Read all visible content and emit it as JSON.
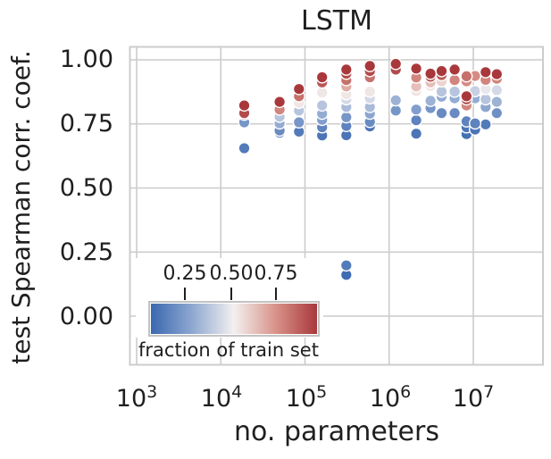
{
  "chart_data": {
    "type": "scatter",
    "title": "LSTM",
    "xlabel": "no. parameters",
    "ylabel": "test Spearman corr. coef.",
    "xscale": "log",
    "xlim": [
      820,
      67000000
    ],
    "ylim": [
      -0.19,
      1.05
    ],
    "grid": true,
    "grid_color": "#cccccc",
    "text_color": "#1f1f1f",
    "marker_edge_color": "#ffffff",
    "xticks": [
      {
        "value": 1000,
        "base": "10",
        "exp": "3"
      },
      {
        "value": 10000,
        "base": "10",
        "exp": "4"
      },
      {
        "value": 100000,
        "base": "10",
        "exp": "5"
      },
      {
        "value": 1000000,
        "base": "10",
        "exp": "6"
      },
      {
        "value": 10000000,
        "base": "10",
        "exp": "7"
      }
    ],
    "yticks": [
      {
        "value": 0.0,
        "label": "0.00"
      },
      {
        "value": 0.25,
        "label": "0.25"
      },
      {
        "value": 0.5,
        "label": "0.50"
      },
      {
        "value": 0.75,
        "label": "0.75"
      },
      {
        "value": 1.0,
        "label": "1.00"
      }
    ],
    "colorbar": {
      "label": "fraction of train set",
      "vmin": 0.05,
      "vmax": 1.0,
      "ticks": [
        {
          "value": 0.25,
          "label": "0.25"
        },
        {
          "value": 0.5,
          "label": "0.50"
        },
        {
          "value": 0.75,
          "label": "0.75"
        }
      ],
      "gradient": [
        {
          "pos": 0.0,
          "color": "#3a68b0"
        },
        {
          "pos": 0.25,
          "color": "#8fa8d1"
        },
        {
          "pos": 0.5,
          "color": "#f3f0ef"
        },
        {
          "pos": 0.75,
          "color": "#d8938a"
        },
        {
          "pos": 1.0,
          "color": "#a9383c"
        }
      ]
    },
    "series": [
      {
        "name": "models",
        "point_format": [
          "no_parameters",
          "test_spearman_corr",
          "fraction_of_train_set"
        ],
        "points": [
          [
            19000,
            0.822,
            1.0
          ],
          [
            19000,
            0.792,
            0.95
          ],
          [
            19000,
            0.786,
            0.9
          ],
          [
            19000,
            0.756,
            0.22
          ],
          [
            19000,
            0.655,
            0.12
          ],
          [
            50000,
            0.836,
            1.0
          ],
          [
            50000,
            0.806,
            0.8
          ],
          [
            50000,
            0.778,
            0.38
          ],
          [
            50000,
            0.752,
            0.3
          ],
          [
            50000,
            0.724,
            0.18
          ],
          [
            50000,
            0.716,
            0.12
          ],
          [
            85000,
            0.886,
            1.0
          ],
          [
            85000,
            0.858,
            0.85
          ],
          [
            85000,
            0.832,
            0.55
          ],
          [
            85000,
            0.802,
            0.38
          ],
          [
            85000,
            0.756,
            0.22
          ],
          [
            85000,
            0.72,
            0.12
          ],
          [
            160000,
            0.932,
            1.0
          ],
          [
            160000,
            0.912,
            0.92
          ],
          [
            160000,
            0.872,
            0.55
          ],
          [
            160000,
            0.822,
            0.38
          ],
          [
            160000,
            0.79,
            0.3
          ],
          [
            160000,
            0.766,
            0.25
          ],
          [
            160000,
            0.737,
            0.15
          ],
          [
            160000,
            0.705,
            0.1
          ],
          [
            310000,
            0.962,
            1.0
          ],
          [
            310000,
            0.946,
            0.95
          ],
          [
            310000,
            0.921,
            0.85
          ],
          [
            310000,
            0.896,
            0.7
          ],
          [
            310000,
            0.866,
            0.55
          ],
          [
            310000,
            0.846,
            0.45
          ],
          [
            310000,
            0.816,
            0.35
          ],
          [
            310000,
            0.776,
            0.22
          ],
          [
            310000,
            0.742,
            0.15
          ],
          [
            310000,
            0.706,
            0.1
          ],
          [
            310000,
            0.198,
            0.12
          ],
          [
            310000,
            0.161,
            0.06
          ],
          [
            590000,
            0.976,
            1.0
          ],
          [
            590000,
            0.956,
            0.95
          ],
          [
            590000,
            0.932,
            0.85
          ],
          [
            590000,
            0.876,
            0.55
          ],
          [
            590000,
            0.85,
            0.45
          ],
          [
            590000,
            0.816,
            0.35
          ],
          [
            590000,
            0.79,
            0.28
          ],
          [
            590000,
            0.758,
            0.18
          ],
          [
            590000,
            0.74,
            0.1
          ],
          [
            1200000,
            0.984,
            1.0
          ],
          [
            1200000,
            0.962,
            0.95
          ],
          [
            1200000,
            0.842,
            0.32
          ],
          [
            1200000,
            0.802,
            0.22
          ],
          [
            2100000,
            0.966,
            1.0
          ],
          [
            2100000,
            0.931,
            0.8
          ],
          [
            2100000,
            0.896,
            0.65
          ],
          [
            2100000,
            0.878,
            0.55
          ],
          [
            2100000,
            0.806,
            0.25
          ],
          [
            2100000,
            0.764,
            0.15
          ],
          [
            2100000,
            0.712,
            0.1
          ],
          [
            3100000,
            0.946,
            1.0
          ],
          [
            3100000,
            0.934,
            0.92
          ],
          [
            3100000,
            0.912,
            0.65
          ],
          [
            3100000,
            0.898,
            0.55
          ],
          [
            3100000,
            0.84,
            0.32
          ],
          [
            3100000,
            0.812,
            0.22
          ],
          [
            4200000,
            0.956,
            1.0
          ],
          [
            4200000,
            0.94,
            0.9
          ],
          [
            4200000,
            0.916,
            0.6
          ],
          [
            4200000,
            0.876,
            0.38
          ],
          [
            4200000,
            0.856,
            0.3
          ],
          [
            4200000,
            0.792,
            0.18
          ],
          [
            6000000,
            0.962,
            1.0
          ],
          [
            6000000,
            0.921,
            0.8
          ],
          [
            6000000,
            0.876,
            0.38
          ],
          [
            6000000,
            0.85,
            0.3
          ],
          [
            6000000,
            0.792,
            0.18
          ],
          [
            8300000,
            0.936,
            0.85
          ],
          [
            8300000,
            0.916,
            0.78
          ],
          [
            8300000,
            0.858,
            1.0
          ],
          [
            8300000,
            0.846,
            0.98
          ],
          [
            8300000,
            0.822,
            0.8
          ],
          [
            8300000,
            0.76,
            0.15
          ],
          [
            8300000,
            0.737,
            0.1
          ],
          [
            8300000,
            0.71,
            0.08
          ],
          [
            10500000,
            0.937,
            0.78
          ],
          [
            10500000,
            0.878,
            0.42
          ],
          [
            10500000,
            0.85,
            0.3
          ],
          [
            10500000,
            0.752,
            0.15
          ],
          [
            10500000,
            0.728,
            0.1
          ],
          [
            14000000,
            0.952,
            1.0
          ],
          [
            14000000,
            0.922,
            0.8
          ],
          [
            14000000,
            0.886,
            0.5
          ],
          [
            14000000,
            0.846,
            0.38
          ],
          [
            14000000,
            0.816,
            0.28
          ],
          [
            14000000,
            0.748,
            0.12
          ],
          [
            19000000,
            0.944,
            1.0
          ],
          [
            19000000,
            0.926,
            0.8
          ],
          [
            19000000,
            0.882,
            0.45
          ],
          [
            19000000,
            0.836,
            0.32
          ],
          [
            19000000,
            0.792,
            0.2
          ]
        ]
      }
    ]
  }
}
